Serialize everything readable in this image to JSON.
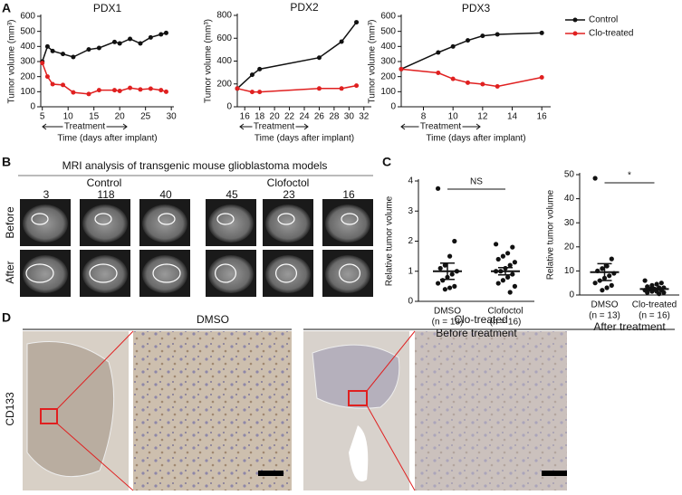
{
  "panel_labels": [
    "A",
    "B",
    "C",
    "D"
  ],
  "chart_data": [
    {
      "type": "line",
      "title": "PDX1",
      "xlabel": "Time (days after implant)",
      "ylabel": "Tumor volume (mm³)",
      "annotation": "Treatment",
      "x": [
        5,
        6,
        7,
        9,
        11,
        14,
        16,
        19,
        20,
        22,
        24,
        26,
        28,
        29
      ],
      "series": [
        {
          "color": "#111111",
          "values": [
            300,
            400,
            370,
            350,
            330,
            380,
            390,
            430,
            420,
            450,
            420,
            460,
            480,
            490
          ]
        },
        {
          "color": "#e02020",
          "values": [
            290,
            200,
            150,
            145,
            95,
            85,
            110,
            110,
            105,
            125,
            115,
            120,
            110,
            100
          ]
        }
      ],
      "xlim": [
        4.7,
        30.5
      ],
      "xticks": [
        5,
        10,
        15,
        20,
        25,
        30
      ],
      "ylim": [
        0,
        600
      ],
      "yticks": [
        0,
        100,
        200,
        300,
        400,
        500,
        600
      ]
    },
    {
      "type": "line",
      "title": "PDX2",
      "xlabel": "Time (days after implant)",
      "ylabel": "Tumor volume (mm³)",
      "annotation": "Treatment",
      "x": [
        15,
        17,
        18,
        26,
        29,
        31
      ],
      "series": [
        {
          "color": "#111111",
          "values": [
            160,
            280,
            330,
            430,
            570,
            740
          ]
        },
        {
          "color": "#e02020",
          "values": [
            160,
            130,
            130,
            160,
            160,
            185
          ]
        }
      ],
      "xlim": [
        15,
        33
      ],
      "xticks": [
        16,
        18,
        20,
        22,
        24,
        26,
        28,
        30,
        32
      ],
      "ylim": [
        0,
        800
      ],
      "yticks": [
        0,
        200,
        400,
        600,
        800
      ]
    },
    {
      "type": "line",
      "title": "PDX3",
      "xlabel": "Time (days after implant)",
      "ylabel": "Tumor volume (mm³)",
      "annotation": "Treatment",
      "x": [
        6.5,
        9,
        10,
        11,
        12,
        13,
        16
      ],
      "series": [
        {
          "name": "Control",
          "color": "#111111",
          "values": [
            250,
            360,
            400,
            440,
            470,
            480,
            490
          ]
        },
        {
          "name": "Clo-treated",
          "color": "#e02020",
          "values": [
            250,
            225,
            185,
            160,
            150,
            135,
            195
          ]
        }
      ],
      "xlim": [
        6.5,
        16.6
      ],
      "xticks": [
        8,
        10,
        12,
        14,
        16
      ],
      "ylim": [
        0,
        600
      ],
      "yticks": [
        0,
        100,
        200,
        300,
        400,
        500,
        600
      ]
    },
    {
      "type": "strip",
      "ylabel": "Relative tumor volume",
      "xlabel": "Before treatment",
      "annotation": "NS",
      "categories": [
        "DMSO",
        "Clofoctol"
      ],
      "category_notes": [
        "(n = 13)",
        "(n = 16)"
      ],
      "groups": [
        {
          "values": [
            3.75,
            2.0,
            1.5,
            1.2,
            1.1,
            1.0,
            0.9,
            0.8,
            0.7,
            0.6,
            0.5,
            0.45,
            0.4
          ],
          "mean": 1.0,
          "sem": 0.27
        },
        {
          "values": [
            1.9,
            1.8,
            1.6,
            1.5,
            1.4,
            1.3,
            1.2,
            1.1,
            1.0,
            1.0,
            0.9,
            0.8,
            0.7,
            0.6,
            0.5,
            0.3
          ],
          "mean": 1.0,
          "sem": 0.12
        }
      ],
      "ylim": [
        0,
        4
      ],
      "yticks": [
        0,
        1,
        2,
        3,
        4
      ]
    },
    {
      "type": "strip",
      "ylabel": "Relative tumor volume",
      "xlabel": "After treatment",
      "annotation": "*",
      "categories": [
        "DMSO",
        "Clo-treated"
      ],
      "category_notes": [
        "(n = 13)",
        "(n = 16)"
      ],
      "groups": [
        {
          "values": [
            48.5,
            15,
            12,
            11,
            10,
            9,
            8,
            7,
            6,
            5,
            4,
            3,
            2
          ],
          "mean": 9.5,
          "sem": 3.5
        },
        {
          "values": [
            6,
            5,
            4.5,
            4,
            3.5,
            3,
            3,
            2.5,
            2.5,
            2,
            2,
            1.5,
            1.5,
            1,
            1,
            0.5
          ],
          "mean": 2.5,
          "sem": 0.4
        }
      ],
      "ylim": [
        0,
        50
      ],
      "yticks": [
        0,
        10,
        20,
        30,
        40,
        50
      ]
    }
  ],
  "mri": {
    "title": "MRI analysis of transgenic mouse glioblastoma models",
    "rows": [
      "Before",
      "After"
    ],
    "groups": [
      {
        "label": "Control",
        "ids": [
          "3",
          "118",
          "40"
        ]
      },
      {
        "label": "Clofoctol",
        "ids": [
          "45",
          "23",
          "16"
        ]
      }
    ]
  },
  "histology": {
    "marker": "CD133",
    "groups": [
      "DMSO",
      "Clo-treated"
    ]
  }
}
